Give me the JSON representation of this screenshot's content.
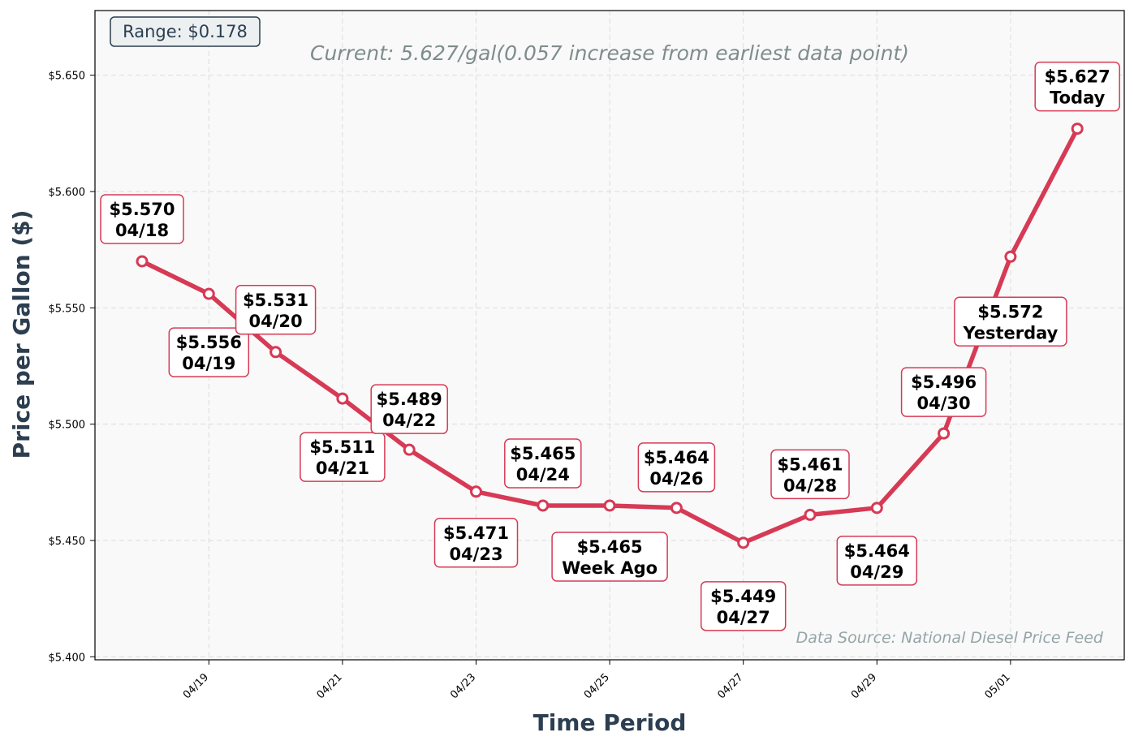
{
  "chart_data": {
    "type": "line",
    "xlabel": "Time Period",
    "ylabel": "Price per Gallon ($)",
    "ylim": [
      5.3987,
      5.6778
    ],
    "yticks": [
      5.4,
      5.45,
      5.5,
      5.55,
      5.6,
      5.65
    ],
    "ytick_labels": [
      "$5.400",
      "$5.450",
      "$5.500",
      "$5.550",
      "$5.600",
      "$5.650"
    ],
    "xtick_labels": [
      "04/19",
      "04/21",
      "04/23",
      "04/25",
      "04/27",
      "04/29",
      "05/01"
    ],
    "grid": true,
    "line_color": "#d63a55",
    "series": [
      {
        "x": [
          "04/18",
          "04/19",
          "04/20",
          "04/21",
          "04/22",
          "04/23",
          "04/24",
          "04/25",
          "04/26",
          "04/27",
          "04/28",
          "04/29",
          "04/30",
          "05/01",
          "05/02"
        ],
        "values": [
          5.57,
          5.556,
          5.531,
          5.511,
          5.489,
          5.471,
          5.465,
          5.465,
          5.464,
          5.449,
          5.461,
          5.464,
          5.496,
          5.572,
          5.627
        ]
      }
    ],
    "annotations": [
      {
        "price": "$5.570",
        "label": "04/18"
      },
      {
        "price": "$5.556",
        "label": "04/19"
      },
      {
        "price": "$5.531",
        "label": "04/20"
      },
      {
        "price": "$5.511",
        "label": "04/21"
      },
      {
        "price": "$5.489",
        "label": "04/22"
      },
      {
        "price": "$5.471",
        "label": "04/23"
      },
      {
        "price": "$5.465",
        "label": "04/24"
      },
      {
        "price": "$5.465",
        "label": "Week Ago"
      },
      {
        "price": "$5.464",
        "label": "04/26"
      },
      {
        "price": "$5.449",
        "label": "04/27"
      },
      {
        "price": "$5.461",
        "label": "04/28"
      },
      {
        "price": "$5.464",
        "label": "04/29"
      },
      {
        "price": "$5.496",
        "label": "04/30"
      },
      {
        "price": "$5.572",
        "label": "Yesterday"
      },
      {
        "price": "$5.627",
        "label": "Today"
      }
    ],
    "range_text": "Range: $0.178",
    "current_text": "Current: 5.627/gal(0.057 increase from earliest data point)",
    "source_text": "Data Source: National Diesel Price Feed"
  }
}
